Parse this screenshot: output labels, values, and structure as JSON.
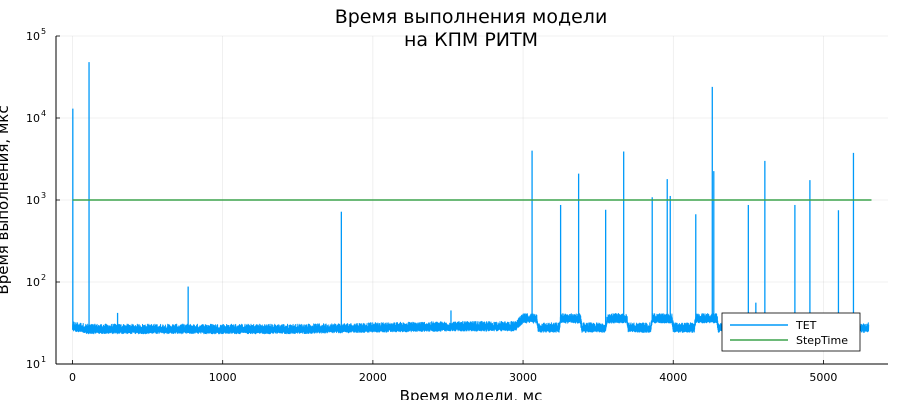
{
  "chart_data": {
    "type": "line",
    "title": [
      "Время выполнения модели",
      "на КПМ РИТМ"
    ],
    "xlabel": "Время модели, мс",
    "ylabel": "Время выполнения, мкс",
    "xlim": [
      -110,
      5430
    ],
    "ylim": [
      10,
      100000
    ],
    "y_scale": "log",
    "grid": true,
    "legend_position": "bottom-right",
    "x_ticks": [
      {
        "value": 0,
        "label": "0"
      },
      {
        "value": 1000,
        "label": "1000"
      },
      {
        "value": 2000,
        "label": "2000"
      },
      {
        "value": 3000,
        "label": "3000"
      },
      {
        "value": 4000,
        "label": "4000"
      },
      {
        "value": 5000,
        "label": "5000"
      }
    ],
    "y_ticks": [
      {
        "value": 10,
        "base": "10",
        "exp": "1"
      },
      {
        "value": 100,
        "base": "10",
        "exp": "2"
      },
      {
        "value": 1000,
        "base": "10",
        "exp": "3"
      },
      {
        "value": 10000,
        "base": "10",
        "exp": "4"
      },
      {
        "value": 100000,
        "base": "10",
        "exp": "5"
      }
    ],
    "series": [
      {
        "name": "TET",
        "color": "#009af9",
        "baseline": [
          {
            "x": 0,
            "y": 28
          },
          {
            "x": 100,
            "y": 26
          },
          {
            "x": 200,
            "y": 26
          },
          {
            "x": 500,
            "y": 26
          },
          {
            "x": 1000,
            "y": 26
          },
          {
            "x": 1500,
            "y": 26
          },
          {
            "x": 2000,
            "y": 27
          },
          {
            "x": 2500,
            "y": 28
          },
          {
            "x": 2950,
            "y": 28
          },
          {
            "x": 3000,
            "y": 35
          },
          {
            "x": 3090,
            "y": 35
          },
          {
            "x": 3100,
            "y": 27
          },
          {
            "x": 3240,
            "y": 27
          },
          {
            "x": 3250,
            "y": 35
          },
          {
            "x": 3380,
            "y": 35
          },
          {
            "x": 3390,
            "y": 27
          },
          {
            "x": 3550,
            "y": 27
          },
          {
            "x": 3560,
            "y": 35
          },
          {
            "x": 3690,
            "y": 35
          },
          {
            "x": 3700,
            "y": 27
          },
          {
            "x": 3850,
            "y": 27
          },
          {
            "x": 3860,
            "y": 35
          },
          {
            "x": 3990,
            "y": 35
          },
          {
            "x": 4000,
            "y": 27
          },
          {
            "x": 4140,
            "y": 27
          },
          {
            "x": 4150,
            "y": 35
          },
          {
            "x": 4290,
            "y": 35
          },
          {
            "x": 4300,
            "y": 27
          },
          {
            "x": 4500,
            "y": 27
          },
          {
            "x": 4600,
            "y": 27
          },
          {
            "x": 5000,
            "y": 27
          },
          {
            "x": 5300,
            "y": 27
          }
        ],
        "spikes": [
          {
            "x": 2,
            "y": 13000
          },
          {
            "x": 110,
            "y": 48000
          },
          {
            "x": 300,
            "y": 42
          },
          {
            "x": 770,
            "y": 88
          },
          {
            "x": 1790,
            "y": 720
          },
          {
            "x": 2520,
            "y": 45
          },
          {
            "x": 3060,
            "y": 4000
          },
          {
            "x": 3250,
            "y": 870
          },
          {
            "x": 3370,
            "y": 2100
          },
          {
            "x": 3550,
            "y": 760
          },
          {
            "x": 3670,
            "y": 3900
          },
          {
            "x": 3860,
            "y": 1080
          },
          {
            "x": 3960,
            "y": 1800
          },
          {
            "x": 3980,
            "y": 1120
          },
          {
            "x": 4150,
            "y": 670
          },
          {
            "x": 4260,
            "y": 24000
          },
          {
            "x": 4270,
            "y": 2250
          },
          {
            "x": 4500,
            "y": 870
          },
          {
            "x": 4550,
            "y": 56
          },
          {
            "x": 4610,
            "y": 3000
          },
          {
            "x": 4810,
            "y": 870
          },
          {
            "x": 4910,
            "y": 1750
          },
          {
            "x": 5100,
            "y": 750
          },
          {
            "x": 5200,
            "y": 3750
          }
        ]
      },
      {
        "name": "StepTime",
        "color": "#3da44d",
        "points": [
          {
            "x": 0,
            "y": 1000
          },
          {
            "x": 5320,
            "y": 1000
          }
        ]
      }
    ]
  }
}
